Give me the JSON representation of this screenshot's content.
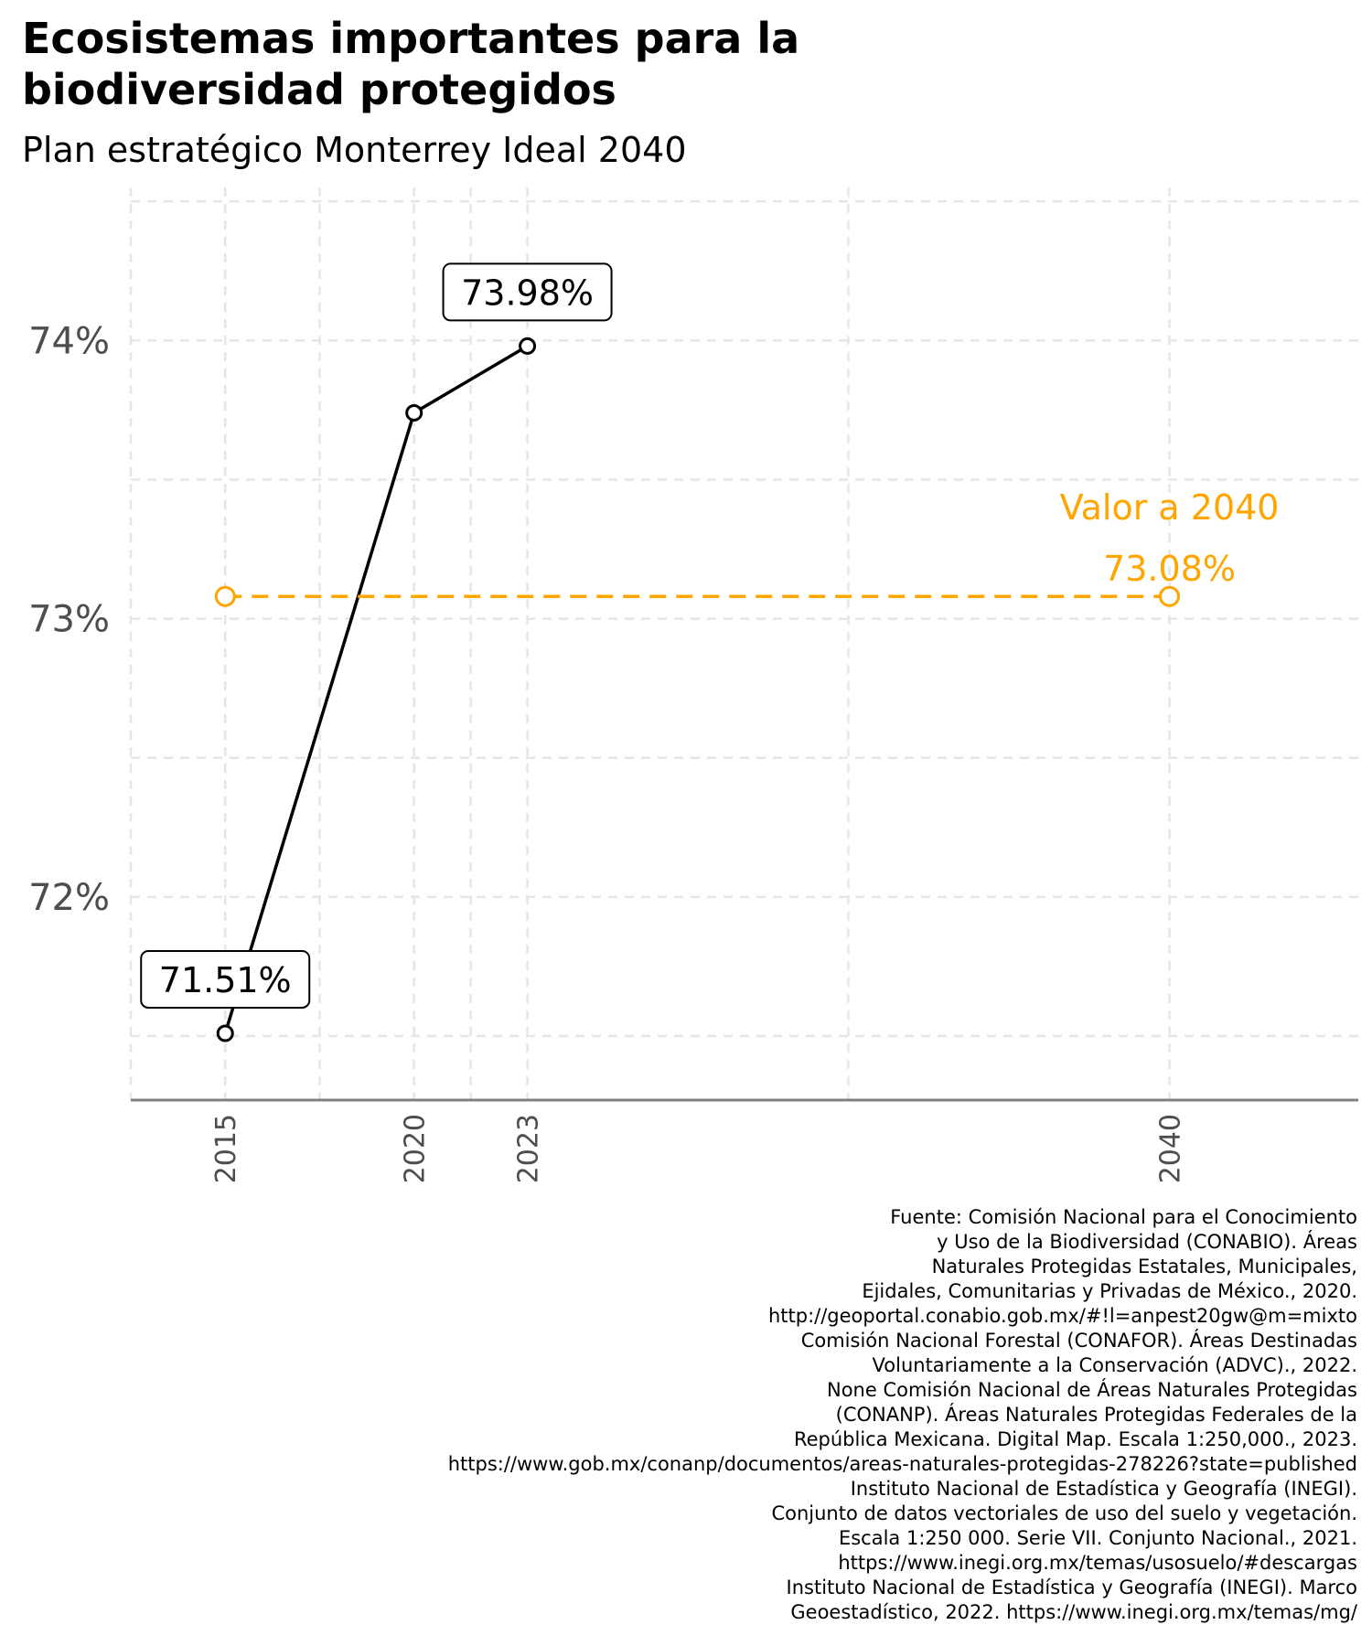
{
  "title_lines": [
    "Ecosistemas importantes para la",
    "biodiversidad protegidos"
  ],
  "subtitle": "Plan estratégico Monterrey Ideal 2040",
  "chart_data": {
    "type": "line",
    "series": [
      {
        "x": [
          2015,
          2020,
          2023
        ],
        "y": [
          71.51,
          73.74,
          73.98
        ],
        "color": "#000000",
        "linestyle": "solid"
      },
      {
        "x": [
          2015,
          2040
        ],
        "y": [
          73.08,
          73.08
        ],
        "color": "#FFA500",
        "linestyle": "dashed"
      }
    ],
    "x_ticks": [
      "2015",
      "2020",
      "2023",
      "2040"
    ],
    "y_ticks": [
      "72%",
      "73%",
      "74%"
    ],
    "xlim": [
      2012.5,
      2045
    ],
    "ylim": [
      71.27,
      74.55
    ],
    "grid": true,
    "annotations": [
      {
        "label": "71.51%",
        "x": 2015,
        "y": 71.51,
        "style": "box-above"
      },
      {
        "label": "73.98%",
        "x": 2023,
        "y": 73.98,
        "style": "box-above"
      }
    ],
    "target_label": [
      "Valor a 2040",
      "73.08%"
    ],
    "colors": {
      "main": "#000000",
      "target": "#FFA500",
      "grid": "#E6E6E6",
      "axis_text": "#4D4D4D"
    }
  },
  "caption_lines": [
    "Fuente: Comisión Nacional para el Conocimiento",
    "y Uso de la Biodiversidad (CONABIO). Áreas",
    "Naturales Protegidas Estatales, Municipales,",
    "Ejidales, Comunitarias y Privadas de México., 2020.",
    "http://geoportal.conabio.gob.mx/#!l=anpest20gw@m=mixto",
    "Comisión Nacional Forestal (CONAFOR). Áreas Destinadas",
    "Voluntariamente a la Conservación (ADVC)., 2022.",
    "None Comisión Nacional de Áreas Naturales Protegidas",
    "(CONANP). Áreas Naturales Protegidas Federales de la",
    "República Mexicana. Digital Map. Escala 1:250,000., 2023.",
    "https://www.gob.mx/conanp/documentos/areas-naturales-protegidas-278226?state=published",
    "Instituto Nacional de Estadística y Geografía (INEGI).",
    "Conjunto de datos vectoriales de uso del suelo y vegetación.",
    "Escala 1:250 000. Serie VII. Conjunto Nacional., 2021.",
    "https://www.inegi.org.mx/temas/usosuelo/#descargas",
    "Instituto Nacional de Estadística y Geografía (INEGI). Marco",
    "Geoestadístico, 2022. https://www.inegi.org.mx/temas/mg/"
  ]
}
